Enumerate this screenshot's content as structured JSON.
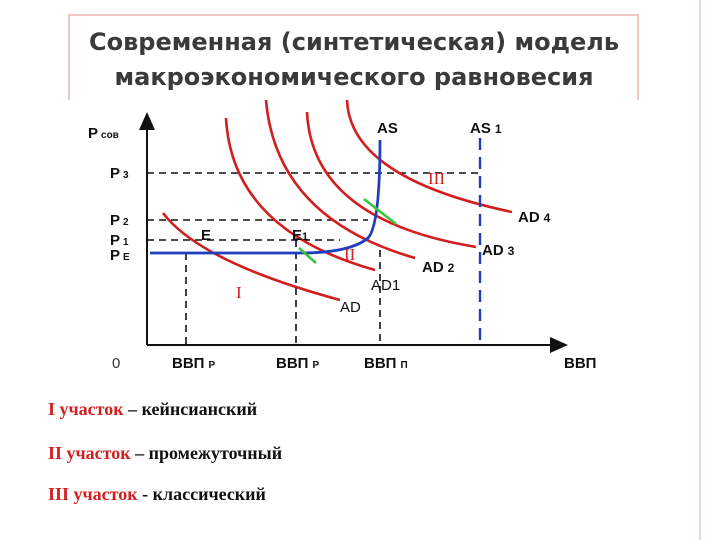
{
  "title": {
    "lines": [
      "Современная (синтетическая) модель",
      "макроэкономического равновесия"
    ]
  },
  "axes": {
    "y_label": {
      "main": "P",
      "sub": "сов"
    },
    "y_ticks": [
      {
        "main": "P",
        "sub": "3"
      },
      {
        "main": "P",
        "sub": "2"
      },
      {
        "main": "P",
        "sub": "1"
      },
      {
        "main": "P",
        "sub": "E"
      }
    ],
    "origin": "0",
    "x_ticks": [
      {
        "main": "ВВП",
        "sub": "Р"
      },
      {
        "main": "ВВП",
        "sub": "Р"
      },
      {
        "main": "ВВП",
        "sub": "П"
      }
    ],
    "x_label": "ВВП"
  },
  "curves": {
    "as": "AS",
    "as1": {
      "main": "AS",
      "sub": "1"
    },
    "ad": "AD",
    "ad1": "AD1",
    "ad2": {
      "main": "AD",
      "sub": "2"
    },
    "ad3": {
      "main": "AD",
      "sub": "3"
    },
    "ad4": {
      "main": "AD",
      "sub": "4"
    }
  },
  "points": {
    "e": "E",
    "e1": {
      "main": "E",
      "sub": "1"
    }
  },
  "regions": [
    "I",
    "II",
    "III"
  ],
  "legend": [
    {
      "term": "I участок",
      "desc": "– кейнсианский"
    },
    {
      "term": "II участок",
      "desc": "– промежуточный"
    },
    {
      "term": "III участок",
      "desc": "- классический"
    }
  ]
}
